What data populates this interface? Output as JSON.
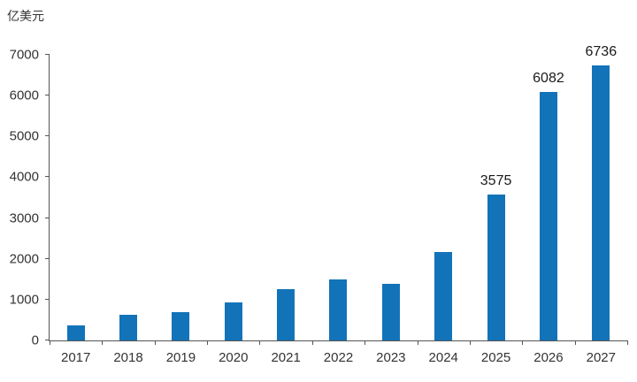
{
  "chart_data": {
    "type": "bar",
    "title": "",
    "unit_label": "亿美元",
    "categories": [
      "2017",
      "2018",
      "2019",
      "2020",
      "2021",
      "2022",
      "2023",
      "2024",
      "2025",
      "2026",
      "2027"
    ],
    "values": [
      370,
      630,
      700,
      930,
      1250,
      1500,
      1390,
      2170,
      3575,
      6082,
      6736
    ],
    "bar_labels": [
      "",
      "",
      "",
      "",
      "",
      "",
      "",
      "",
      "3575",
      "6082",
      "6736"
    ],
    "ylim": [
      0,
      7000
    ],
    "ytick_interval": 1000,
    "grid": false,
    "legend": "none",
    "bar_color": "#1373b9",
    "axis_color": "#555555",
    "text_color": "#333333"
  }
}
